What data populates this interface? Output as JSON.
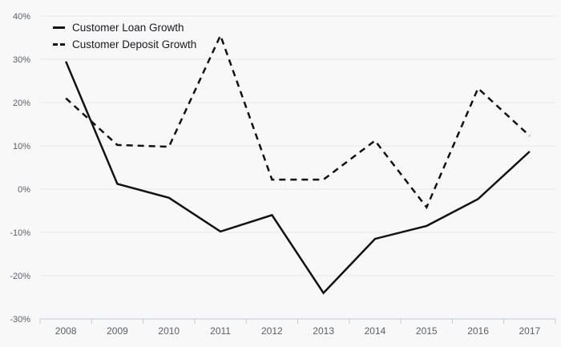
{
  "chart_data": {
    "type": "line",
    "x": [
      2008,
      2009,
      2010,
      2011,
      2012,
      2013,
      2014,
      2015,
      2016,
      2017
    ],
    "series": [
      {
        "name": "Customer Loan Growth",
        "style": "solid",
        "color": "#121212",
        "values": [
          29.5,
          1.2,
          -2.0,
          -9.8,
          -6.0,
          -24.0,
          -11.5,
          -8.5,
          -2.3,
          8.7
        ]
      },
      {
        "name": "Customer Deposit Growth",
        "style": "dashed",
        "color": "#121212",
        "values": [
          21.0,
          10.2,
          9.8,
          35.5,
          2.2,
          2.2,
          11.2,
          -4.2,
          23.3,
          12.3
        ]
      }
    ],
    "title": "",
    "xlabel": "",
    "ylabel": "",
    "ylim": [
      -30,
      40
    ],
    "ytick_values": [
      40,
      30,
      20,
      10,
      0,
      -10,
      -20,
      -30
    ],
    "ytick_labels": [
      "40%",
      "30%",
      "20%",
      "10%",
      "0%",
      "-10%",
      "-20%",
      "-30%"
    ],
    "xtick_labels": [
      "2008",
      "2009",
      "2010",
      "2011",
      "2012",
      "2013",
      "2014",
      "2015",
      "2016",
      "2017"
    ],
    "grid": true,
    "legend_position": "top-left"
  },
  "colors": {
    "background": "#f8f8f9",
    "gridline": "#e7e7e8",
    "axis": "#c3c8da",
    "tick_label": "#5b6069",
    "series_line": "#121212",
    "legend_text": "#17191d"
  }
}
